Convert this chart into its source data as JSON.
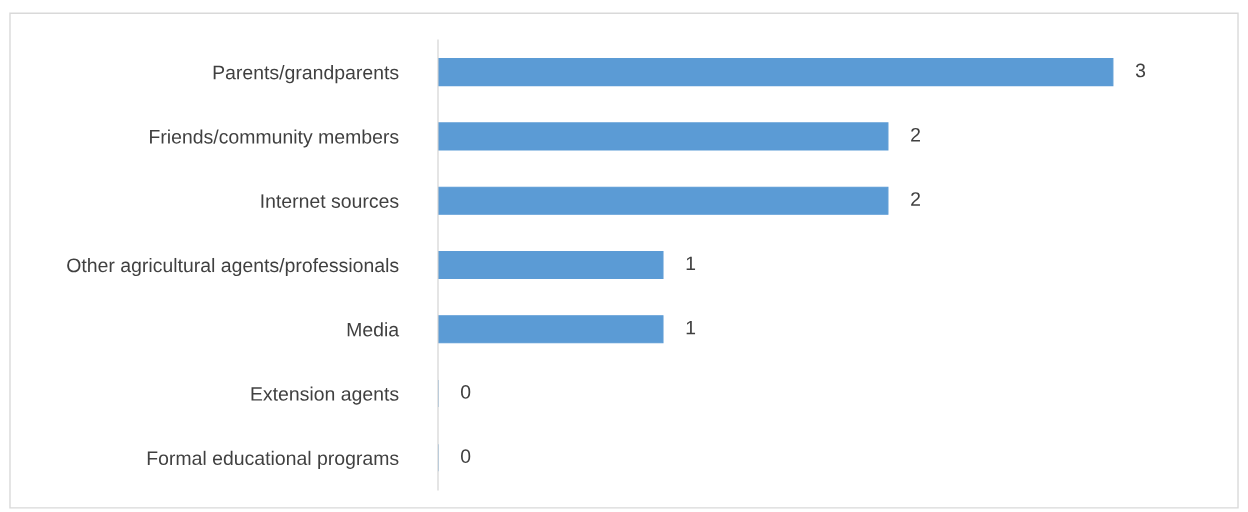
{
  "chart_data": {
    "type": "bar",
    "orientation": "horizontal",
    "categories": [
      "Parents/grandparents",
      "Friends/community members",
      "Internet sources",
      "Other agricultural agents/professionals",
      "Media",
      "Extension agents",
      "Formal educational programs"
    ],
    "values": [
      3,
      2,
      2,
      1,
      1,
      0,
      0
    ],
    "color": "#5b9bd5",
    "data_labels": true,
    "grid": false,
    "legend": false
  }
}
